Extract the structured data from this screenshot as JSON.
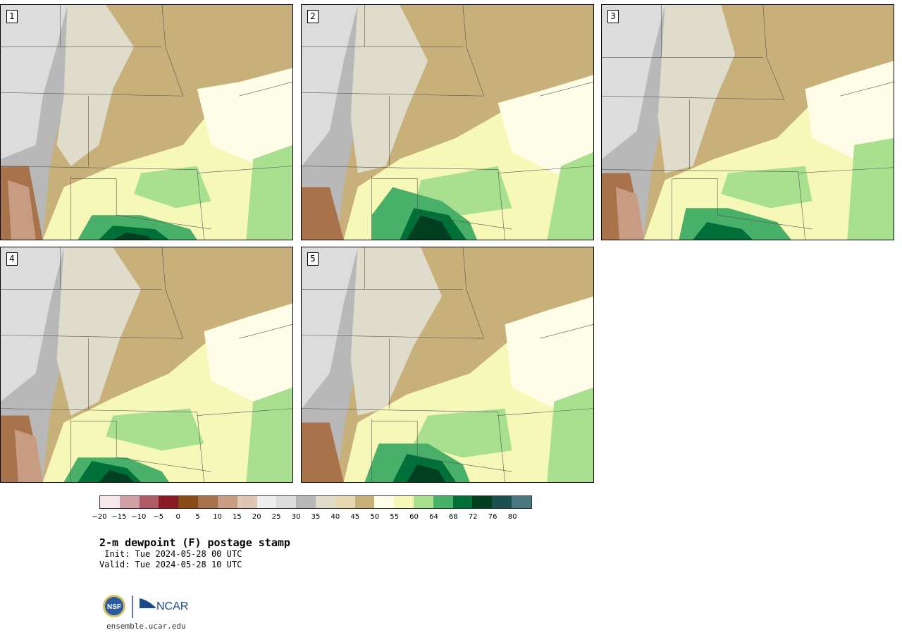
{
  "panels": [
    {
      "label": "1"
    },
    {
      "label": "2"
    },
    {
      "label": "3"
    },
    {
      "label": "4"
    },
    {
      "label": "5"
    }
  ],
  "colorbar": {
    "colors": [
      "#f6e8ea",
      "#d4a0a8",
      "#b05a66",
      "#8a1a24",
      "#8a4a14",
      "#a8724a",
      "#c89c82",
      "#e0c6b4",
      "#eeeeee",
      "#dcdcdc",
      "#b8b8b8",
      "#e0dccc",
      "#e8d8b0",
      "#c8b07a",
      "#fefee8",
      "#f6f8b8",
      "#a8e090",
      "#48b068",
      "#007038",
      "#004020",
      "#1a5050",
      "#4a7880"
    ],
    "tick_labels": [
      "−20",
      "−15",
      "−10",
      "−5",
      "0",
      "5",
      "10",
      "15",
      "20",
      "25",
      "30",
      "35",
      "40",
      "45",
      "50",
      "55",
      "60",
      "64",
      "68",
      "72",
      "76",
      "80"
    ]
  },
  "title": "2-m dewpoint (F) postage stamp",
  "init_text": " Init: Tue 2024-05-28 00 UTC",
  "valid_text": "Valid: Tue 2024-05-28 10 UTC",
  "logos": {
    "left_logo": "NSF",
    "right_logo": "NCAR"
  },
  "url": "ensemble.ucar.edu"
}
